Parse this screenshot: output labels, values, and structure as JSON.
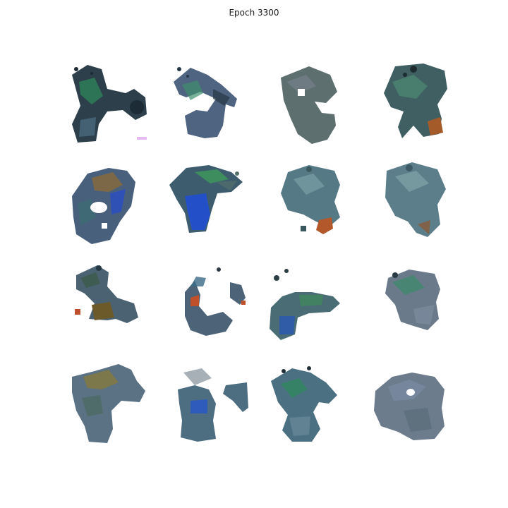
{
  "figure": {
    "title": "Epoch 3300"
  },
  "samples": [
    {
      "id": 1,
      "row": 1,
      "col": 1,
      "colors": [
        "#2c3f4a",
        "#4a6a7d",
        "#2e8a5a",
        "#1c2b36"
      ]
    },
    {
      "id": 2,
      "row": 1,
      "col": 2,
      "colors": [
        "#4f6480",
        "#6e7d9a",
        "#3f8f6d",
        "#263846"
      ]
    },
    {
      "id": 3,
      "row": 1,
      "col": 3,
      "colors": [
        "#5d6f6e",
        "#4e6f6a",
        "#7a8390",
        "#3e5355"
      ]
    },
    {
      "id": 4,
      "row": 1,
      "col": 4,
      "colors": [
        "#3f5f63",
        "#4e8a72",
        "#a55a2a",
        "#1e2c30"
      ]
    },
    {
      "id": 5,
      "row": 2,
      "col": 1,
      "colors": [
        "#49607d",
        "#8a6a3a",
        "#2a4fc0",
        "#3c6d72"
      ]
    },
    {
      "id": 6,
      "row": 2,
      "col": 2,
      "colors": [
        "#3d5d6f",
        "#2350c8",
        "#3d9a5a",
        "#52716b"
      ]
    },
    {
      "id": 7,
      "row": 2,
      "col": 3,
      "colors": [
        "#557a86",
        "#7ba0a5",
        "#b2582a",
        "#3c585f"
      ]
    },
    {
      "id": 8,
      "row": 2,
      "col": 4,
      "colors": [
        "#5c7e8a",
        "#82a4a8",
        "#8a5a3a",
        "#3e5a64"
      ]
    },
    {
      "id": 9,
      "row": 3,
      "col": 1,
      "colors": [
        "#4a6272",
        "#6c5a2a",
        "#3a5a45",
        "#253a44"
      ]
    },
    {
      "id": 10,
      "row": 3,
      "col": 2,
      "colors": [
        "#4c6378",
        "#3a6a86",
        "#c0502a",
        "#2c3a48"
      ]
    },
    {
      "id": 11,
      "row": 3,
      "col": 3,
      "colors": [
        "#4a6c74",
        "#2a58b0",
        "#3e8a5a",
        "#2a3e44"
      ]
    },
    {
      "id": 12,
      "row": 3,
      "col": 4,
      "colors": [
        "#6a7a8a",
        "#3c8a6a",
        "#7e8ca0",
        "#2a3a44"
      ]
    },
    {
      "id": 13,
      "row": 4,
      "col": 1,
      "colors": [
        "#5a7284",
        "#8a7a3a",
        "#4a6a60",
        "#2e4048"
      ]
    },
    {
      "id": 14,
      "row": 4,
      "col": 2,
      "colors": [
        "#4d6e80",
        "#2a58c8",
        "#6a7c86",
        "#2c3c44"
      ]
    },
    {
      "id": 15,
      "row": 4,
      "col": 3,
      "colors": [
        "#4a7082",
        "#2e8a5a",
        "#6a8a98",
        "#213038"
      ]
    },
    {
      "id": 16,
      "row": 4,
      "col": 4,
      "colors": [
        "#6c7c8c",
        "#7a8aa4",
        "#5a6c78",
        "#8e9aae"
      ]
    }
  ]
}
